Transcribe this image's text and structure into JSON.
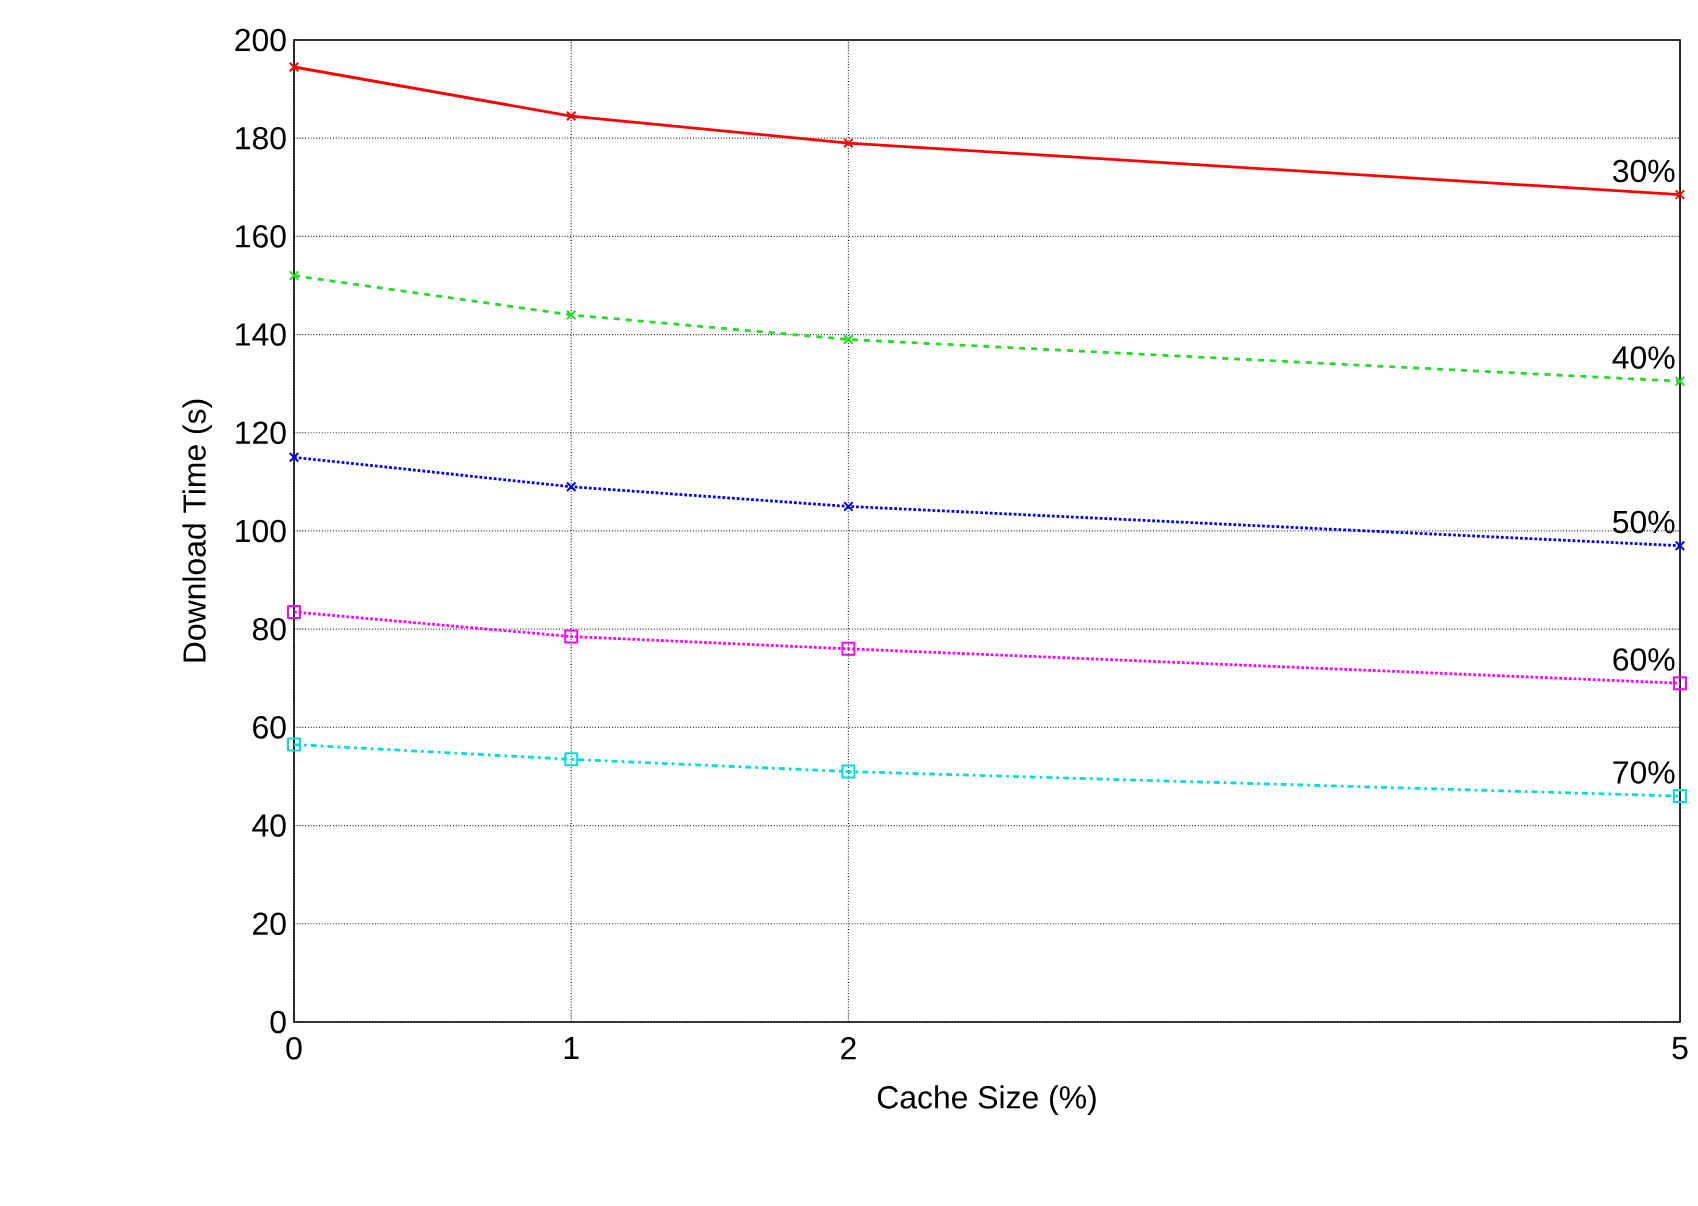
{
  "chart_data": {
    "type": "line",
    "xlabel": "Cache Size (%)",
    "ylabel": "Download Time (s)",
    "x": [
      0,
      1,
      2,
      5
    ],
    "xlim": [
      0,
      5
    ],
    "xticks": [
      0,
      1,
      2,
      5
    ],
    "ylim": [
      0,
      200
    ],
    "yticks": [
      0,
      20,
      40,
      60,
      80,
      100,
      120,
      140,
      160,
      180,
      200
    ],
    "grid": true,
    "series": [
      {
        "name": "30%",
        "color": "#ff0000",
        "values": [
          194.5,
          184.5,
          179,
          168.5
        ],
        "marker": "cross",
        "line_style": "solid"
      },
      {
        "name": "40%",
        "color": "#22dd22",
        "values": [
          152,
          144,
          139,
          130.5
        ],
        "marker": "cross",
        "line_style": "dashed"
      },
      {
        "name": "50%",
        "color": "#0000ee",
        "values": [
          115,
          109,
          105,
          97
        ],
        "marker": "cross",
        "line_style": "dotted"
      },
      {
        "name": "60%",
        "color": "#ff00ff",
        "values": [
          83.5,
          78.5,
          76,
          69
        ],
        "marker": "square",
        "line_style": "dotted"
      },
      {
        "name": "70%",
        "color": "#00dddd",
        "values": [
          56.5,
          53.5,
          51,
          46
        ],
        "marker": "square",
        "line_style": "dashdot"
      }
    ]
  }
}
